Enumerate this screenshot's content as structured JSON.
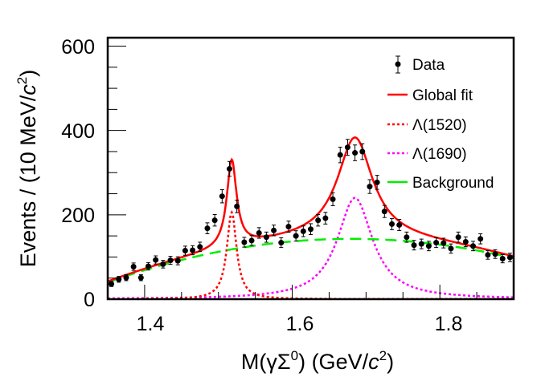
{
  "chart_data": {
    "type": "scatter",
    "title": "",
    "xlabel": "M(γΣ⁰) (GeV/c²)",
    "xlabel_parts": {
      "pre": "M(γΣ",
      "sup1": "0",
      "mid": ") (GeV/",
      "c": "c",
      "sup2": "2",
      "post": ")"
    },
    "ylabel": "Events / (10 MeV/c²)",
    "ylabel_parts": {
      "pre": "Events / (10 MeV/",
      "c": "c",
      "sup": "2",
      "post": ")"
    },
    "xlim": [
      1.35,
      1.9
    ],
    "ylim": [
      0,
      620
    ],
    "x_ticks": [
      "1.4",
      "1.6",
      "1.8"
    ],
    "y_ticks": [
      "0",
      "200",
      "400",
      "600"
    ],
    "grid": false,
    "legend_placement": "top-right",
    "legend": [
      {
        "label": "Data",
        "style": "points",
        "color": "#000000"
      },
      {
        "label": "Global fit",
        "style": "solid",
        "color": "#ff0000"
      },
      {
        "label": "Λ(1520)",
        "style": "dotted",
        "color": "#ff0000"
      },
      {
        "label": "Λ(1690)",
        "style": "dotted",
        "color": "#ff00ff"
      },
      {
        "label": "Background",
        "style": "dashed",
        "color": "#00ee00"
      }
    ],
    "data": {
      "x": [
        1.355,
        1.365,
        1.375,
        1.385,
        1.395,
        1.405,
        1.415,
        1.425,
        1.435,
        1.445,
        1.455,
        1.465,
        1.475,
        1.485,
        1.495,
        1.505,
        1.515,
        1.525,
        1.535,
        1.545,
        1.555,
        1.565,
        1.575,
        1.585,
        1.595,
        1.605,
        1.615,
        1.625,
        1.635,
        1.645,
        1.655,
        1.665,
        1.675,
        1.685,
        1.695,
        1.705,
        1.715,
        1.725,
        1.735,
        1.745,
        1.755,
        1.765,
        1.775,
        1.785,
        1.795,
        1.805,
        1.815,
        1.825,
        1.835,
        1.845,
        1.855,
        1.865,
        1.875,
        1.885,
        1.895
      ],
      "y": [
        36,
        47,
        51,
        77,
        51,
        78,
        93,
        83,
        92,
        91,
        115,
        116,
        124,
        168,
        187,
        244,
        309,
        220,
        135,
        139,
        157,
        147,
        163,
        134,
        172,
        150,
        161,
        166,
        187,
        192,
        237,
        342,
        360,
        347,
        350,
        267,
        277,
        208,
        178,
        176,
        147,
        128,
        131,
        126,
        134,
        133,
        120,
        147,
        136,
        126,
        143,
        105,
        107,
        96,
        99
      ]
    },
    "fit_components": {
      "lambda1520": {
        "mass": 1.518,
        "width": 0.016,
        "peak": 206
      },
      "lambda1690": {
        "mass": 1.685,
        "width": 0.058,
        "peak": 240
      },
      "background": {
        "peak_x": 1.68,
        "peak_y": 143,
        "curvature": 946
      }
    }
  }
}
